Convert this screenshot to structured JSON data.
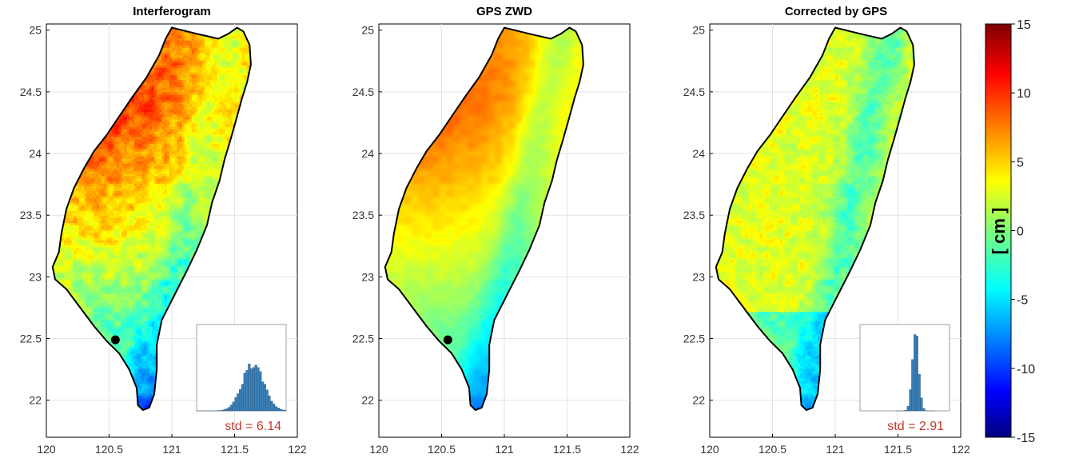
{
  "panels": [
    {
      "title": "Interferogram",
      "std_label": "std = 6.14",
      "field": "interferogram",
      "has_inset": true,
      "has_dot": true
    },
    {
      "title": "GPS ZWD",
      "std_label": "",
      "field": "zwd",
      "has_inset": false,
      "has_dot": true
    },
    {
      "title": "Corrected by GPS",
      "std_label": "std = 2.91",
      "field": "corrected",
      "has_inset": true,
      "has_dot": false
    }
  ],
  "axes": {
    "x_ticks": [
      "120",
      "120.5",
      "121",
      "121.5",
      "122"
    ],
    "y_ticks": [
      "25",
      "24.5",
      "24",
      "23.5",
      "23",
      "22.5",
      "22"
    ],
    "x_range": [
      120,
      122
    ],
    "y_range": [
      21.7,
      25.05
    ]
  },
  "colorbar": {
    "label": "[ cm ]",
    "ticks": [
      "15",
      "10",
      "5",
      "0",
      "-5",
      "-10",
      "-15"
    ],
    "range": [
      -15,
      15
    ],
    "colormap": "jet"
  },
  "colors": {
    "coastline": "#000000",
    "std_text": "#c0392b",
    "histogram_bar": "#3b7fb5"
  },
  "dot_location": {
    "lon": 120.55,
    "lat": 22.49
  }
}
